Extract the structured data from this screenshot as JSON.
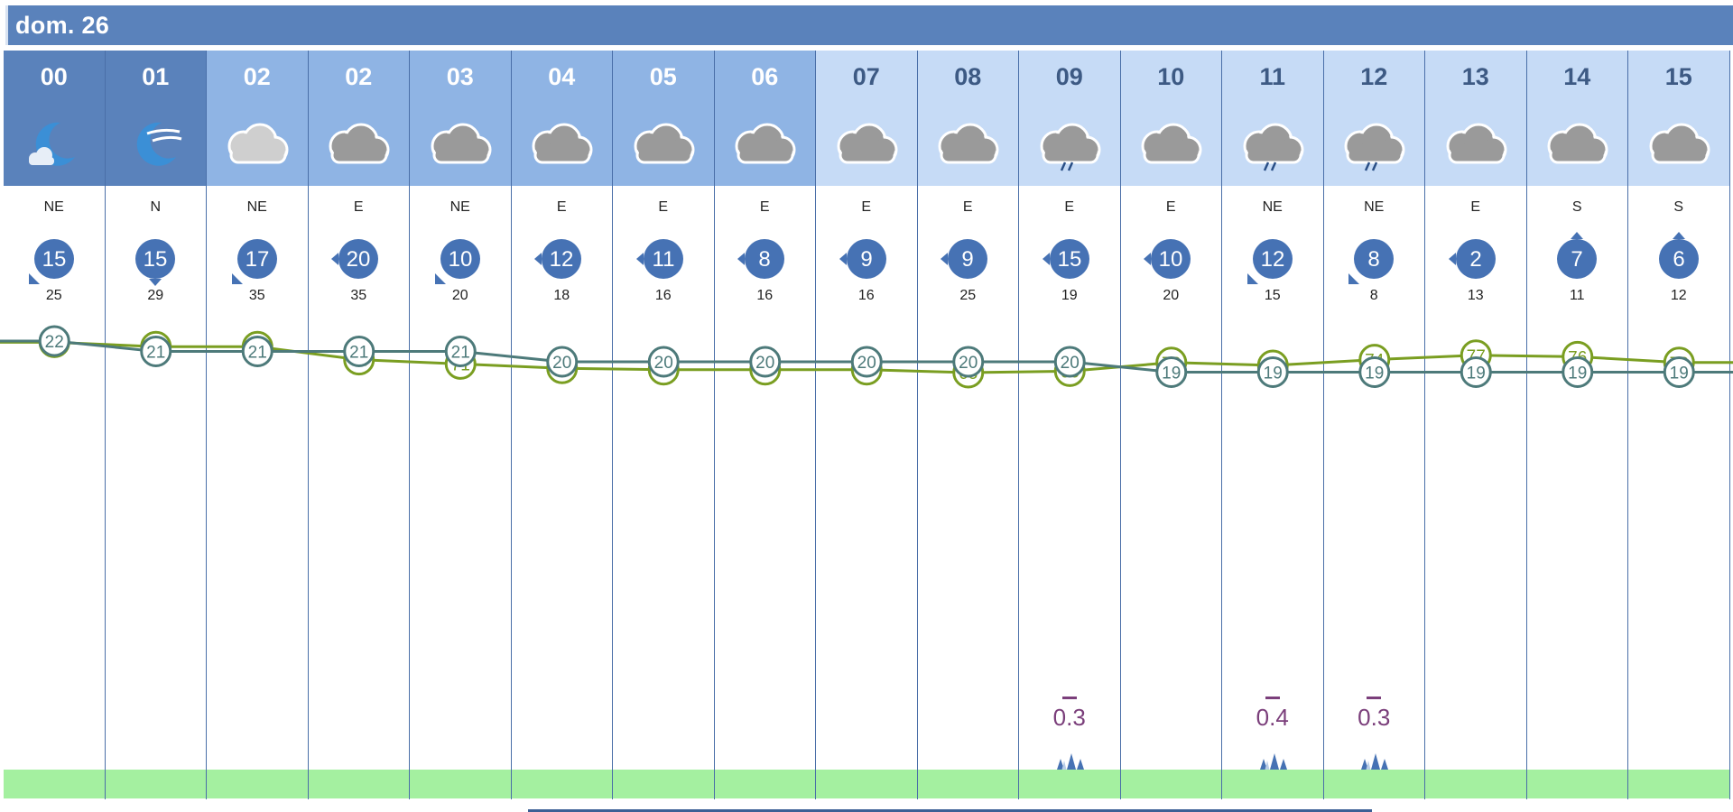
{
  "day": {
    "label": "dom. 26"
  },
  "colors": {
    "night_header": "#5a82bb",
    "dawn_header": "#8fb4e4",
    "day_header": "#c6dbf6",
    "wind_badge": "#4672b4",
    "temp_line": "#4d7a7a",
    "humidity_line": "#7a9e21",
    "rain_text": "#7b3f7b",
    "bottom_bar": "#a4f0a0"
  },
  "columns": [
    {
      "hour": "00",
      "period": "night",
      "icon": "moon-icon",
      "dir": "NE",
      "wind": "15",
      "arrow": "sw",
      "gust": "25",
      "temp": 22,
      "hum": 86
    },
    {
      "hour": "01",
      "period": "night",
      "icon": "moon-wind-icon",
      "dir": "N",
      "wind": "15",
      "arrow": "s",
      "gust": "29",
      "temp": 21,
      "hum": 83
    },
    {
      "hour": "02",
      "period": "dawn",
      "icon": "cloud-light-icon",
      "dir": "NE",
      "wind": "17",
      "arrow": "sw",
      "gust": "35",
      "temp": 21,
      "hum": 83
    },
    {
      "hour": "02",
      "period": "dawn",
      "icon": "cloud-icon",
      "dir": "E",
      "wind": "20",
      "arrow": "w",
      "gust": "35",
      "temp": 21,
      "hum": 74
    },
    {
      "hour": "03",
      "period": "dawn",
      "icon": "cloud-icon",
      "dir": "NE",
      "wind": "10",
      "arrow": "sw",
      "gust": "20",
      "temp": 21,
      "hum": 71
    },
    {
      "hour": "04",
      "period": "dawn",
      "icon": "cloud-icon",
      "dir": "E",
      "wind": "12",
      "arrow": "w",
      "gust": "18",
      "temp": 20,
      "hum": 68
    },
    {
      "hour": "05",
      "period": "dawn",
      "icon": "cloud-icon",
      "dir": "E",
      "wind": "11",
      "arrow": "w",
      "gust": "16",
      "temp": 20,
      "hum": 67
    },
    {
      "hour": "06",
      "period": "dawn",
      "icon": "cloud-icon",
      "dir": "E",
      "wind": "8",
      "arrow": "w",
      "gust": "16",
      "temp": 20,
      "hum": 67
    },
    {
      "hour": "07",
      "period": "day",
      "icon": "cloud-icon",
      "dir": "E",
      "wind": "9",
      "arrow": "w",
      "gust": "16",
      "temp": 20,
      "hum": 67
    },
    {
      "hour": "08",
      "period": "day",
      "icon": "cloud-icon",
      "dir": "E",
      "wind": "9",
      "arrow": "w",
      "gust": "25",
      "temp": 20,
      "hum": 65
    },
    {
      "hour": "09",
      "period": "day",
      "icon": "cloud-rain-icon",
      "dir": "E",
      "wind": "15",
      "arrow": "w",
      "gust": "19",
      "temp": 20,
      "hum": 66,
      "rain": "0.3"
    },
    {
      "hour": "10",
      "period": "day",
      "icon": "cloud-icon",
      "dir": "E",
      "wind": "10",
      "arrow": "w",
      "gust": "20",
      "temp": 19,
      "hum": 72
    },
    {
      "hour": "11",
      "period": "day",
      "icon": "cloud-rain-icon",
      "dir": "NE",
      "wind": "12",
      "arrow": "sw",
      "gust": "15",
      "temp": 19,
      "hum": 70,
      "rain": "0.4"
    },
    {
      "hour": "12",
      "period": "day",
      "icon": "cloud-rain-icon",
      "dir": "NE",
      "wind": "8",
      "arrow": "sw",
      "gust": "8",
      "temp": 19,
      "hum": 74,
      "rain": "0.3"
    },
    {
      "hour": "13",
      "period": "day",
      "icon": "cloud-icon",
      "dir": "E",
      "wind": "2",
      "arrow": "w",
      "gust": "13",
      "temp": 19,
      "hum": 77
    },
    {
      "hour": "14",
      "period": "day",
      "icon": "cloud-icon",
      "dir": "S",
      "wind": "7",
      "arrow": "n",
      "gust": "11",
      "temp": 19,
      "hum": 76
    },
    {
      "hour": "15",
      "period": "day",
      "icon": "cloud-icon",
      "dir": "S",
      "wind": "6",
      "arrow": "n",
      "gust": "12",
      "temp": 19,
      "hum": 72
    }
  ]
}
